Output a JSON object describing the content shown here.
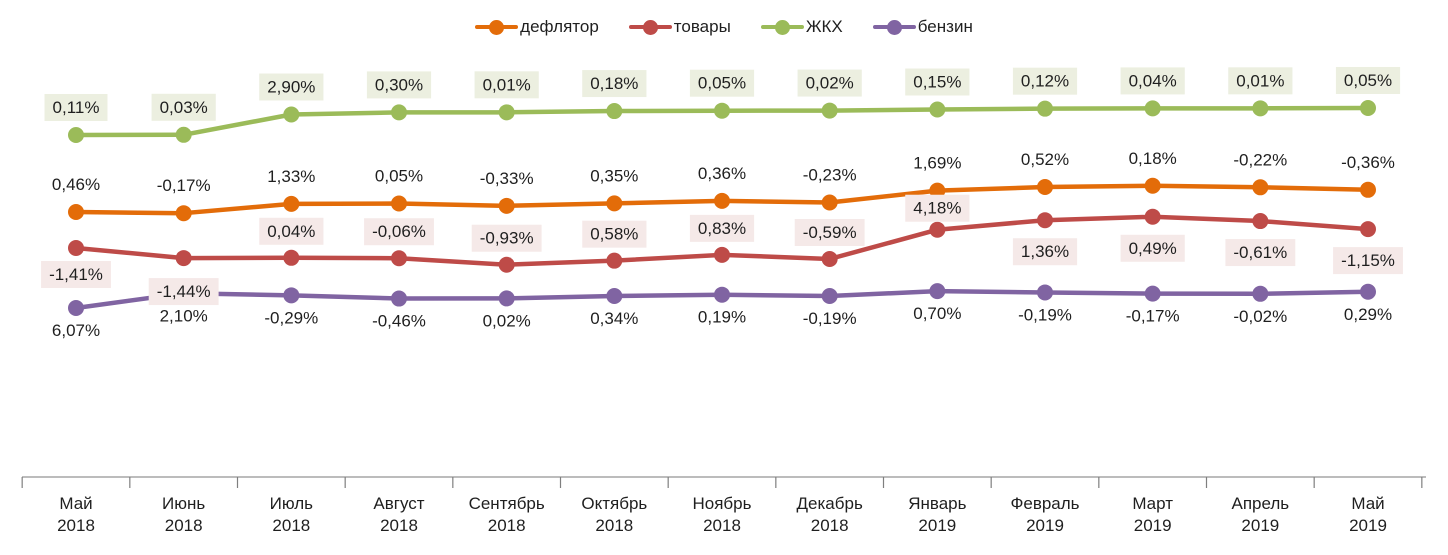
{
  "legend": {
    "items": [
      {
        "key": "deflator",
        "label": "дефлятор",
        "color": "#E36C09"
      },
      {
        "key": "goods",
        "label": "товары",
        "color": "#BE4B48"
      },
      {
        "key": "utilities",
        "label": "ЖКХ",
        "color": "#9BBB59"
      },
      {
        "key": "gasoline",
        "label": "бензин",
        "color": "#8064A2"
      }
    ]
  },
  "chart_data": {
    "type": "line",
    "legend_position": "top-center",
    "grid": false,
    "value_format": "0,00%",
    "categories": [
      {
        "month": "Май",
        "year": "2018"
      },
      {
        "month": "Июнь",
        "year": "2018"
      },
      {
        "month": "Июль",
        "year": "2018"
      },
      {
        "month": "Август",
        "year": "2018"
      },
      {
        "month": "Сентябрь",
        "year": "2018"
      },
      {
        "month": "Октябрь",
        "year": "2018"
      },
      {
        "month": "Ноябрь",
        "year": "2018"
      },
      {
        "month": "Декабрь",
        "year": "2018"
      },
      {
        "month": "Январь",
        "year": "2019"
      },
      {
        "month": "Февраль",
        "year": "2019"
      },
      {
        "month": "Март",
        "year": "2019"
      },
      {
        "month": "Апрель",
        "year": "2019"
      },
      {
        "month": "Май",
        "year": "2019"
      }
    ],
    "series": [
      {
        "key": "deflator",
        "name": "дефлятор",
        "color": "#E36C09",
        "label_background": null,
        "values": [
          0.46,
          -0.17,
          1.33,
          0.05,
          -0.33,
          0.35,
          0.36,
          -0.23,
          1.69,
          0.52,
          0.18,
          -0.22,
          -0.36
        ],
        "labels": [
          "0,46%",
          "-0,17%",
          "1,33%",
          "0,05%",
          "-0,33%",
          "0,35%",
          "0,36%",
          "-0,23%",
          "1,69%",
          "0,52%",
          "0,18%",
          "-0,22%",
          "-0,36%"
        ]
      },
      {
        "key": "goods",
        "name": "товары",
        "color": "#BE4B48",
        "label_background": "#F5E9E8",
        "values": [
          -1.41,
          -1.44,
          0.04,
          -0.06,
          -0.93,
          0.58,
          0.83,
          -0.59,
          4.18,
          1.36,
          0.49,
          -0.61,
          -1.15
        ],
        "labels": [
          "-1,41%",
          "-1,44%",
          "0,04%",
          "-0,06%",
          "-0,93%",
          "0,58%",
          "0,83%",
          "-0,59%",
          "4,18%",
          "1,36%",
          "0,49%",
          "-0,61%",
          "-1,15%"
        ]
      },
      {
        "key": "utilities",
        "name": "ЖКХ",
        "color": "#9BBB59",
        "label_background": "#ECEFE0",
        "values": [
          0.11,
          0.03,
          2.9,
          0.3,
          0.01,
          0.18,
          0.05,
          0.02,
          0.15,
          0.12,
          0.04,
          0.01,
          0.05
        ],
        "labels": [
          "0,11%",
          "0,03%",
          "2,90%",
          "0,30%",
          "0,01%",
          "0,18%",
          "0,05%",
          "0,02%",
          "0,15%",
          "0,12%",
          "0,04%",
          "0,01%",
          "0,05%"
        ]
      },
      {
        "key": "gasoline",
        "name": "бензин",
        "color": "#8064A2",
        "label_background": null,
        "values": [
          6.07,
          2.1,
          -0.29,
          -0.46,
          0.02,
          0.34,
          0.19,
          -0.19,
          0.7,
          -0.19,
          -0.17,
          -0.02,
          0.29
        ],
        "labels": [
          "6,07%",
          "2,10%",
          "-0,29%",
          "-0,46%",
          "0,02%",
          "0,34%",
          "0,19%",
          "-0,19%",
          "0,70%",
          "-0,19%",
          "-0,17%",
          "-0,02%",
          "0,29%"
        ]
      }
    ]
  }
}
